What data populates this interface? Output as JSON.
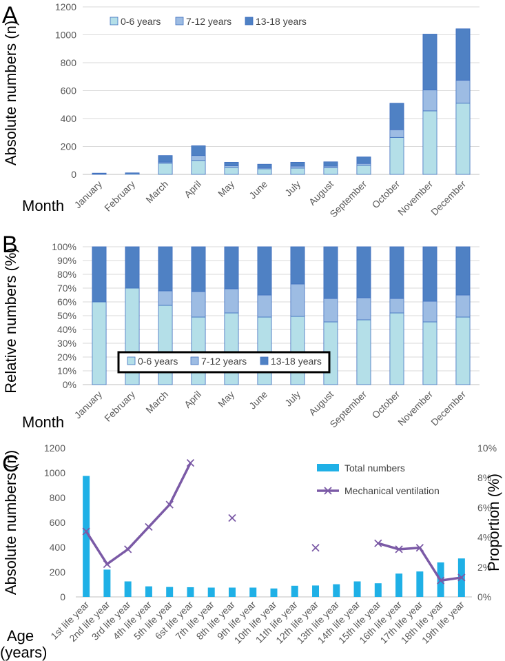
{
  "colors": {
    "age_0_6": "#b4dfe8",
    "age_7_12": "#9dbce3",
    "age_13_18": "#4f81c4",
    "bar_edge": "#3e6ebf",
    "total_bars": "#1fb0e6",
    "ventilation": "#7b5aa6",
    "grid": "#d9d9d9",
    "axis_text": "#595959"
  },
  "chart_data": [
    {
      "panel": "A",
      "type": "bar",
      "stacked": true,
      "categories": [
        "January",
        "February",
        "March",
        "April",
        "May",
        "June",
        "July",
        "August",
        "September",
        "October",
        "November",
        "December"
      ],
      "series": [
        {
          "name": "0-6 years",
          "values": [
            5,
            7,
            80,
            100,
            50,
            40,
            45,
            47,
            65,
            265,
            455,
            510
          ]
        },
        {
          "name": "7-12 years",
          "values": [
            1,
            1,
            8,
            35,
            12,
            8,
            14,
            12,
            13,
            55,
            150,
            165
          ]
        },
        {
          "name": "13-18 years",
          "values": [
            3,
            3,
            47,
            70,
            25,
            25,
            28,
            31,
            47,
            190,
            400,
            368
          ]
        }
      ],
      "title": "",
      "xlabel": "Month",
      "ylabel": "Absolute numbers (n)",
      "ylim": [
        0,
        1200
      ],
      "yticks": [
        "0",
        "200",
        "400",
        "600",
        "800",
        "1000",
        "1200"
      ],
      "grid": true,
      "legend_position": "top-left"
    },
    {
      "panel": "B",
      "type": "bar",
      "stacked": true,
      "normalized": true,
      "categories": [
        "January",
        "February",
        "March",
        "April",
        "May",
        "June",
        "July",
        "August",
        "September",
        "October",
        "November",
        "December"
      ],
      "series": [
        {
          "name": "0-6 years",
          "values": [
            60,
            70,
            57.5,
            49,
            52,
            49,
            49.5,
            45.5,
            47,
            52,
            45.5,
            49
          ]
        },
        {
          "name": "7-12 years",
          "values": [
            0,
            0,
            10.5,
            18.5,
            17.5,
            16,
            23.5,
            17,
            16,
            10.5,
            15,
            16
          ]
        },
        {
          "name": "13-18 years",
          "values": [
            40,
            30,
            32,
            32.5,
            30.5,
            35,
            27,
            37.5,
            37,
            37.5,
            39.5,
            35
          ]
        }
      ],
      "title": "",
      "xlabel": "Month",
      "ylabel": "Relative numbers (%)",
      "ylim": [
        0,
        100
      ],
      "yticks": [
        "0%",
        "10%",
        "20%",
        "30%",
        "40%",
        "50%",
        "60%",
        "70%",
        "80%",
        "90%",
        "100%"
      ],
      "grid": true,
      "legend_position": "bottom-center"
    },
    {
      "panel": "C",
      "type": "bar",
      "categories": [
        "1st life year",
        "2nd life year",
        "3rd life year",
        "4th life year",
        "5th life year",
        "6st life year",
        "7th life year",
        "8th life year",
        "9th life year",
        "10th life year",
        "11th life year",
        "12th life year",
        "13th life year",
        "14th life year",
        "15th life year",
        "16th life year",
        "17th life year",
        "18th life year",
        "19th life year"
      ],
      "series": [
        {
          "name": "Total numbers",
          "type": "bar",
          "axis": "left",
          "values": [
            975,
            220,
            125,
            85,
            80,
            78,
            75,
            75,
            75,
            68,
            90,
            92,
            102,
            125,
            110,
            188,
            205,
            278,
            310
          ]
        },
        {
          "name": "Mechanical ventilation",
          "type": "line",
          "axis": "right",
          "values": [
            4.4,
            2.2,
            3.2,
            4.7,
            6.2,
            9.0,
            null,
            5.3,
            null,
            null,
            null,
            3.3,
            null,
            null,
            3.6,
            3.2,
            3.3,
            1.1,
            1.3
          ]
        }
      ],
      "title": "",
      "xlabel": "Age (years)",
      "xlabel_lines": [
        "Age",
        "(years)"
      ],
      "ylabel": "Absolute numbers (n)",
      "ylabel_right": "Proportion (%)",
      "ylim": [
        0,
        1200
      ],
      "ylim_right": [
        0,
        10
      ],
      "yticks": [
        "0",
        "200",
        "400",
        "600",
        "800",
        "1000",
        "1200"
      ],
      "yticks_right": [
        "0%",
        "2%",
        "4%",
        "6%",
        "8%",
        "10%"
      ],
      "grid": false,
      "legend_position": "top-right"
    }
  ]
}
